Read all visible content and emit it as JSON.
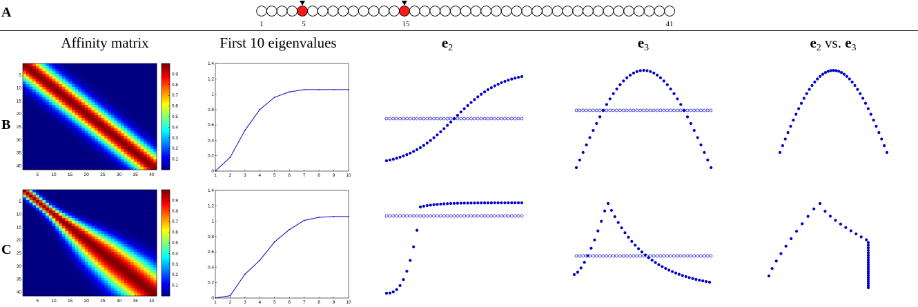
{
  "row_labels": {
    "a": "A",
    "b": "B",
    "c": "C"
  },
  "chain": {
    "count": 41,
    "highlighted": [
      5,
      15
    ],
    "labels": [
      "1",
      "5",
      "15",
      "41"
    ]
  },
  "column_titles": {
    "affinity": "Affinity matrix",
    "eigen": "First 10 eigenvalues",
    "e2": {
      "base": "e",
      "sub": "2"
    },
    "e3": {
      "base": "e",
      "sub": "3"
    },
    "e2e3": {
      "base1": "e",
      "sub1": "2",
      "vs": " vs. ",
      "base2": "e",
      "sub2": "3"
    }
  },
  "colors": {
    "node_highlight": "#ff1a1a",
    "series": "#0000cc",
    "cmap": [
      "#00008f",
      "#0000ff",
      "#00ffff",
      "#ffff00",
      "#ff0000",
      "#800000"
    ]
  },
  "heatmap_ticks": [
    "5",
    "10",
    "15",
    "20",
    "25",
    "30",
    "35",
    "40"
  ],
  "colorbar_ticks": [
    "0.1",
    "0.2",
    "0.3",
    "0.4",
    "0.5",
    "0.6",
    "0.7",
    "0.8",
    "0.9"
  ],
  "chart_data": [
    {
      "type": "line",
      "row": "B",
      "x": [
        1,
        2,
        3,
        4,
        5,
        6,
        7,
        8,
        9,
        10
      ],
      "values": [
        0.0,
        0.18,
        0.53,
        0.8,
        0.96,
        1.03,
        1.06,
        1.06,
        1.06,
        1.06
      ],
      "xlim": [
        1,
        10
      ],
      "ylim": [
        0,
        1.4
      ],
      "xticks": [
        "1",
        "2",
        "3",
        "4",
        "5",
        "6",
        "7",
        "8",
        "9",
        "10"
      ],
      "yticks": [
        "0",
        "0.2",
        "0.4",
        "0.6",
        "0.8",
        "1",
        "1.2",
        "1.4"
      ]
    },
    {
      "type": "line",
      "row": "C",
      "x": [
        1,
        2,
        3,
        4,
        5,
        6,
        7,
        8,
        9,
        10
      ],
      "values": [
        0.0,
        0.03,
        0.31,
        0.49,
        0.73,
        0.89,
        1.01,
        1.05,
        1.06,
        1.06
      ],
      "xlim": [
        1,
        10
      ],
      "ylim": [
        0,
        1.4
      ],
      "xticks": [
        "1",
        "2",
        "3",
        "4",
        "5",
        "6",
        "7",
        "8",
        "9",
        "10"
      ],
      "yticks": [
        "0",
        "0.2",
        "0.4",
        "0.6",
        "0.8",
        "1",
        "1.2",
        "1.4"
      ]
    }
  ]
}
